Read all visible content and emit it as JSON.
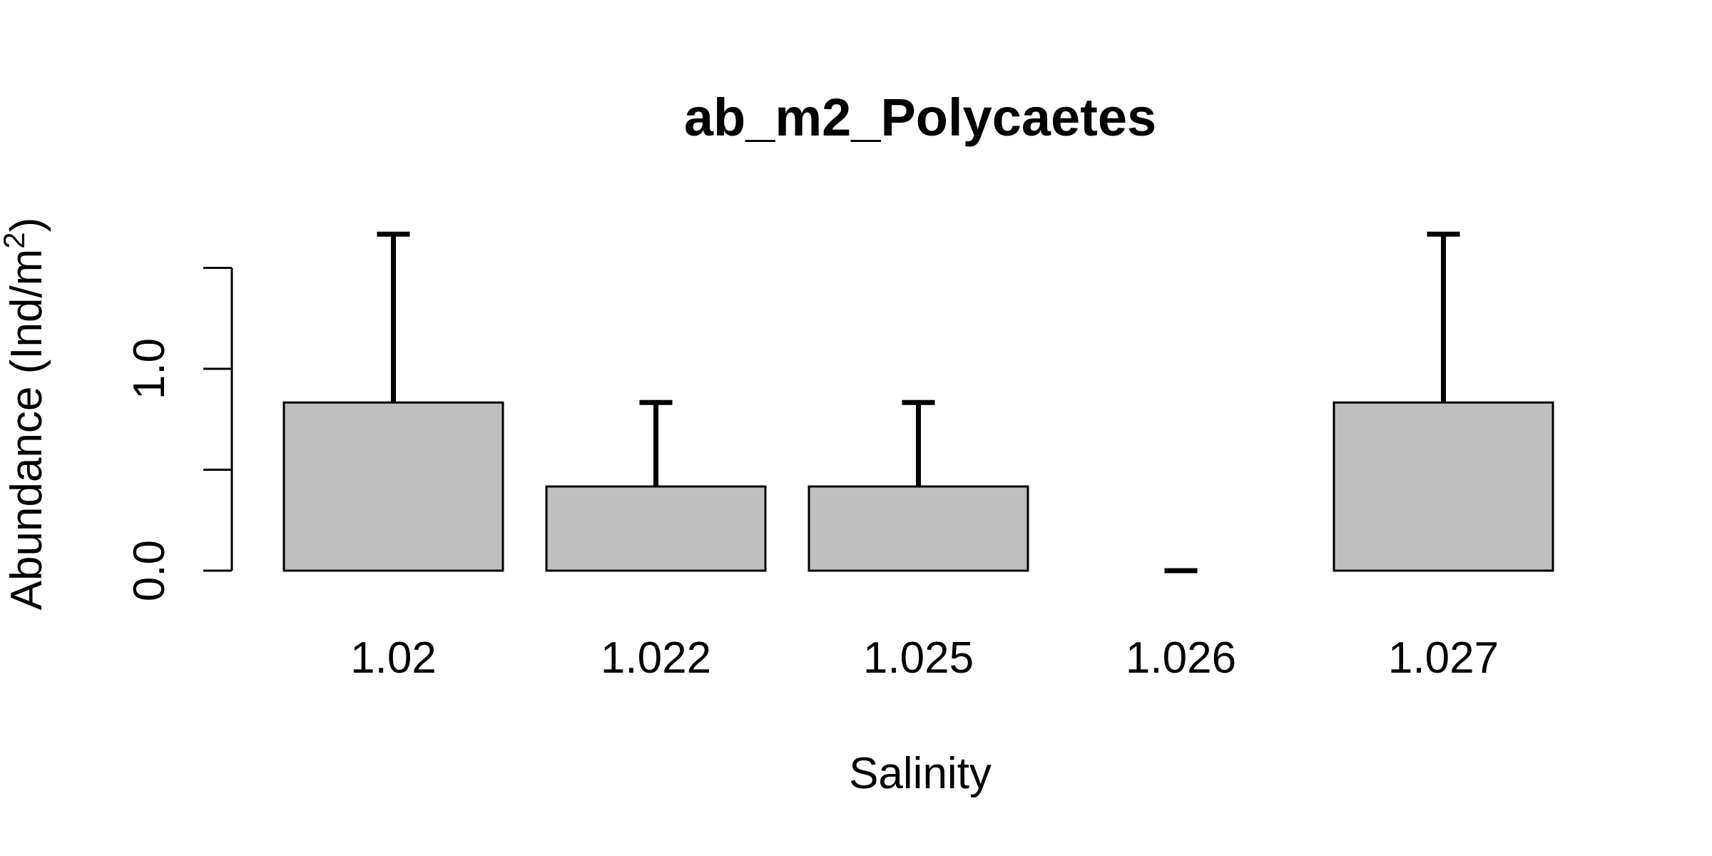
{
  "chart_data": {
    "type": "bar",
    "title": "ab_m2_Polycaetes",
    "xlabel": "Salinity",
    "ylabel_main": "Abundance (Ind/m",
    "ylabel_sup": "2",
    "ylabel_close": ")",
    "categories": [
      "1.02",
      "1.022",
      "1.025",
      "1.026",
      "1.027"
    ],
    "values": [
      0.833,
      0.417,
      0.417,
      0.0,
      0.833
    ],
    "error_upper": [
      1.667,
      0.833,
      0.833,
      0.0,
      1.667
    ],
    "yticks": [
      0.0,
      0.5,
      1.0,
      1.5
    ],
    "ytick_labels": [
      "0.0",
      "",
      "1.0",
      ""
    ],
    "ylim": [
      0,
      1.7
    ],
    "grid": false,
    "bar_color": "#bebebe"
  }
}
